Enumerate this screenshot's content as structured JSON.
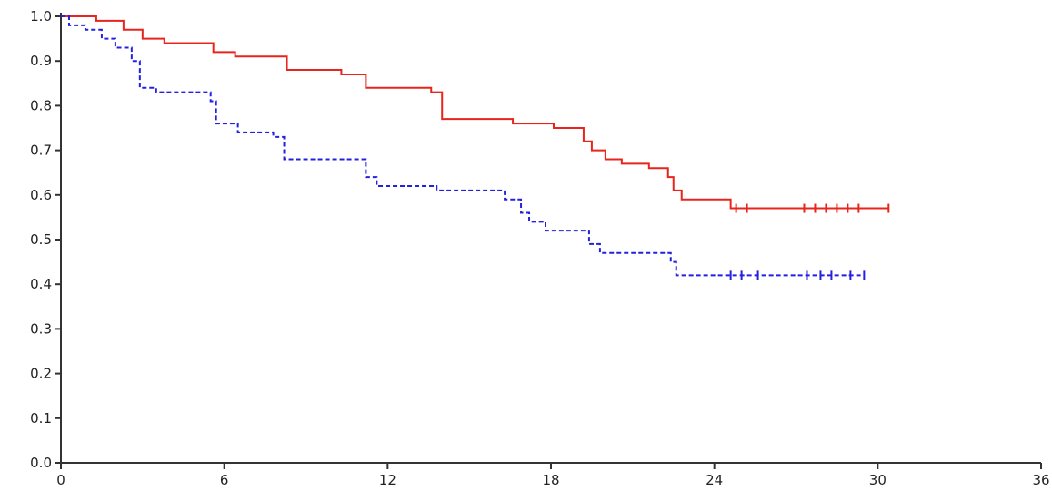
{
  "chart_data": {
    "type": "line",
    "title": "",
    "xlabel": "",
    "ylabel": "",
    "xlim": [
      0,
      36
    ],
    "ylim": [
      0.0,
      1.0
    ],
    "grid": false,
    "legend": "none",
    "x_ticks": [
      "0",
      "6",
      "12",
      "18",
      "24",
      "30",
      "36"
    ],
    "x_tick_values": [
      0,
      6,
      12,
      18,
      24,
      30,
      36
    ],
    "y_ticks": [
      "0.0",
      "0.1",
      "0.2",
      "0.3",
      "0.4",
      "0.5",
      "0.6",
      "0.7",
      "0.8",
      "0.9",
      "1.0"
    ],
    "y_tick_values": [
      0.0,
      0.1,
      0.2,
      0.3,
      0.4,
      0.5,
      0.6,
      0.7,
      0.8,
      0.9,
      1.0
    ],
    "series": [
      {
        "color": "#e8241c",
        "line_style": "solid",
        "step": true,
        "x": [
          0,
          1.3,
          2.3,
          3.0,
          3.8,
          5.6,
          6.4,
          8.3,
          10.3,
          11.2,
          13.6,
          14.0,
          16.6,
          18.1,
          19.2,
          19.5,
          20.0,
          20.6,
          21.6,
          22.3,
          22.5,
          22.8,
          24.6,
          30.4
        ],
        "y": [
          1.0,
          0.99,
          0.97,
          0.95,
          0.94,
          0.92,
          0.91,
          0.88,
          0.87,
          0.84,
          0.83,
          0.77,
          0.76,
          0.75,
          0.72,
          0.7,
          0.68,
          0.67,
          0.66,
          0.64,
          0.61,
          0.59,
          0.57,
          0.57
        ],
        "censored_x": [
          24.8,
          25.2,
          27.3,
          27.7,
          28.1,
          28.5,
          28.9,
          29.3,
          30.4
        ]
      },
      {
        "color": "#2420e0",
        "line_style": "dashed",
        "step": true,
        "x": [
          0,
          0.3,
          0.9,
          1.5,
          2.0,
          2.6,
          2.9,
          3.5,
          5.5,
          5.7,
          6.5,
          7.8,
          8.2,
          11.2,
          11.6,
          13.8,
          16.3,
          16.9,
          17.2,
          17.8,
          19.4,
          19.8,
          22.4,
          22.6,
          29.5
        ],
        "y": [
          1.0,
          0.98,
          0.97,
          0.95,
          0.93,
          0.9,
          0.84,
          0.83,
          0.81,
          0.76,
          0.74,
          0.73,
          0.68,
          0.64,
          0.62,
          0.61,
          0.59,
          0.56,
          0.54,
          0.52,
          0.49,
          0.47,
          0.45,
          0.42,
          0.42
        ],
        "censored_x": [
          24.6,
          25.0,
          25.6,
          27.4,
          27.9,
          28.3,
          29.0,
          29.5
        ]
      }
    ]
  }
}
